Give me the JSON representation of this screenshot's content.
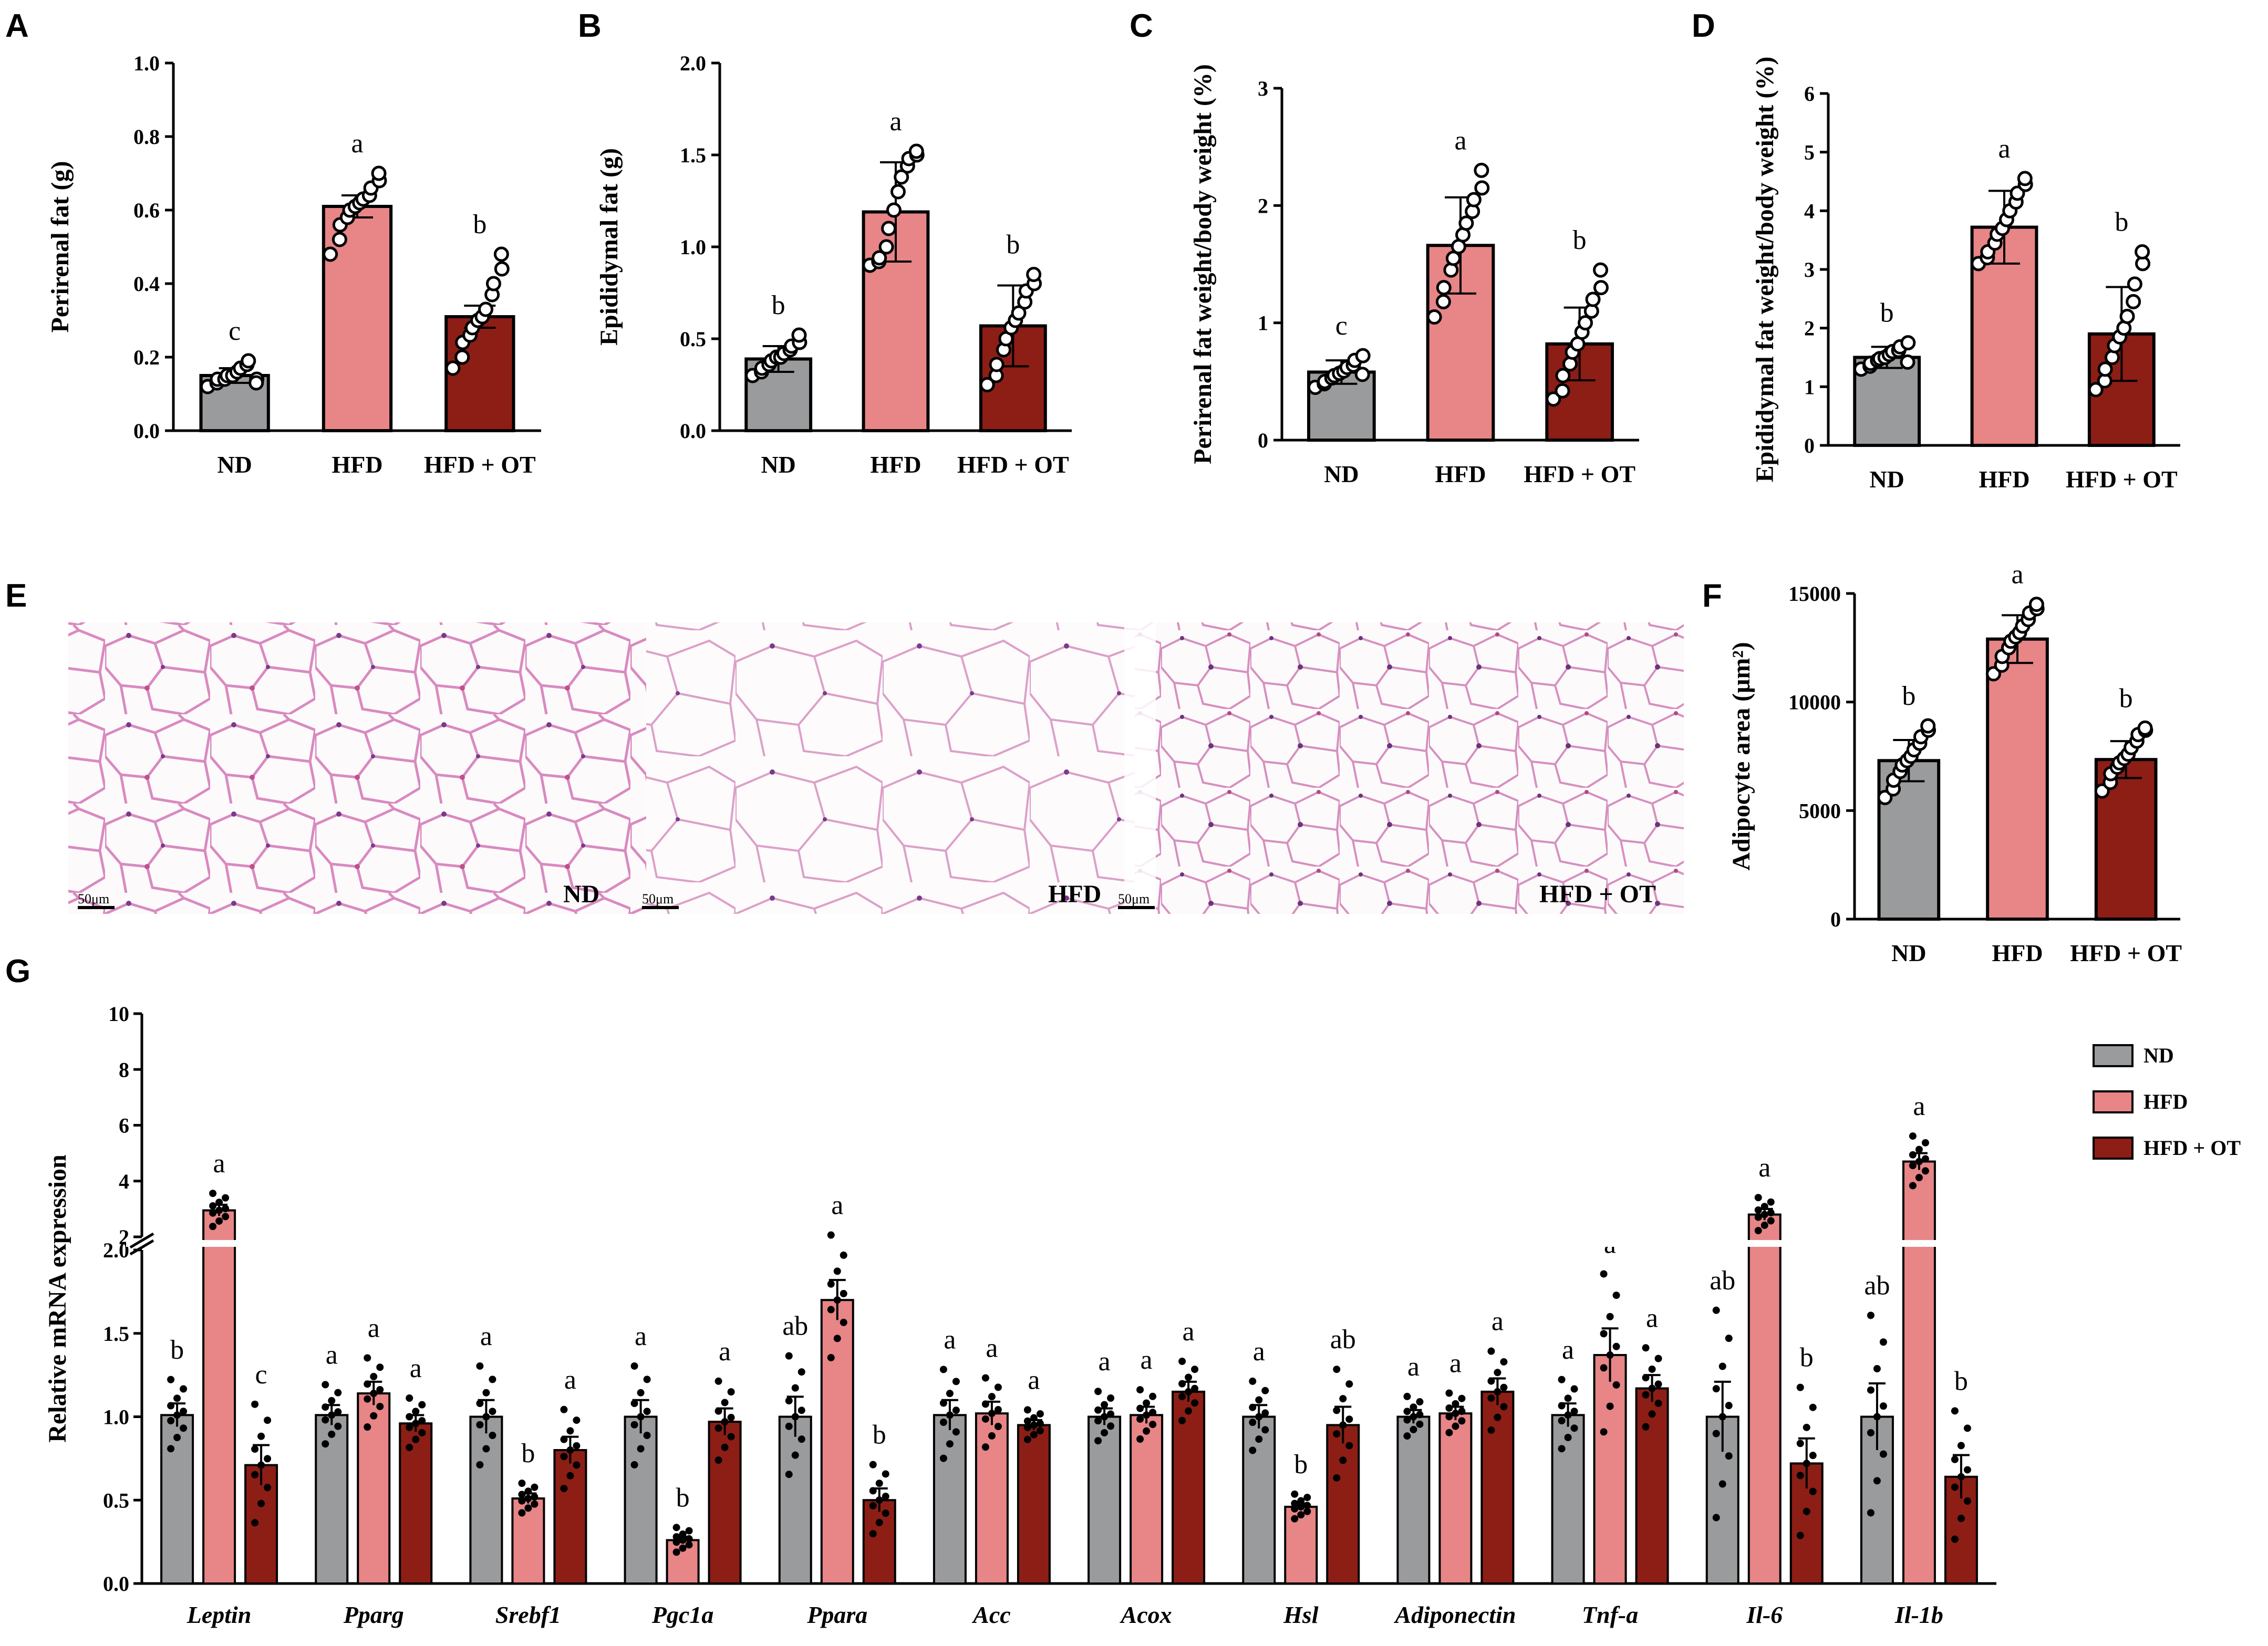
{
  "colors": {
    "ND": "#9a9b9d",
    "HFD": "#e78587",
    "HFD_OT": "#8c1e16",
    "axis": "#000000"
  },
  "panels": {
    "A": {
      "label": "A"
    },
    "B": {
      "label": "B"
    },
    "C": {
      "label": "C"
    },
    "D": {
      "label": "D"
    },
    "E": {
      "label": "E"
    },
    "F": {
      "label": "F"
    },
    "G": {
      "label": "G"
    }
  },
  "histology": {
    "groups": [
      "ND",
      "HFD",
      "HFD + OT"
    ],
    "scale_bar": "50μm"
  },
  "chart_data": [
    {
      "id": "A",
      "type": "bar",
      "ylabel": "Perirenal fat (g)",
      "categories": [
        "ND",
        "HFD",
        "HFD + OT"
      ],
      "values": [
        0.15,
        0.61,
        0.31
      ],
      "errors": [
        0.02,
        0.03,
        0.03
      ],
      "letters": [
        "c",
        "a",
        "b"
      ],
      "ylim": [
        0,
        1.0
      ],
      "yticks": [
        "0.0",
        "0.2",
        "0.4",
        "0.6",
        "0.8",
        "1.0"
      ],
      "points": [
        [
          0.12,
          0.13,
          0.14,
          0.14,
          0.15,
          0.15,
          0.16,
          0.17,
          0.18,
          0.19,
          0.14,
          0.13
        ],
        [
          0.48,
          0.52,
          0.56,
          0.58,
          0.6,
          0.61,
          0.62,
          0.63,
          0.64,
          0.66,
          0.68,
          0.7
        ],
        [
          0.17,
          0.2,
          0.24,
          0.26,
          0.28,
          0.3,
          0.31,
          0.33,
          0.37,
          0.4,
          0.44,
          0.48
        ]
      ]
    },
    {
      "id": "B",
      "type": "bar",
      "ylabel": "Epididymal fat (g)",
      "categories": [
        "ND",
        "HFD",
        "HFD + OT"
      ],
      "values": [
        0.39,
        1.19,
        0.57
      ],
      "errors": [
        0.07,
        0.27,
        0.22
      ],
      "letters": [
        "b",
        "a",
        "b"
      ],
      "ylim": [
        0,
        2.0
      ],
      "yticks": [
        "0.0",
        "0.5",
        "1.0",
        "1.5",
        "2.0"
      ],
      "points": [
        [
          0.3,
          0.32,
          0.34,
          0.36,
          0.38,
          0.4,
          0.4,
          0.42,
          0.44,
          0.46,
          0.48,
          0.52
        ],
        [
          0.9,
          0.92,
          0.94,
          1.0,
          1.1,
          1.2,
          1.3,
          1.38,
          1.44,
          1.48,
          1.5,
          1.52
        ],
        [
          0.25,
          0.3,
          0.36,
          0.44,
          0.5,
          0.56,
          0.6,
          0.64,
          0.7,
          0.76,
          0.8,
          0.85
        ]
      ]
    },
    {
      "id": "C",
      "type": "bar",
      "ylabel": "Perirenal fat weight/body weight (%)",
      "categories": [
        "ND",
        "HFD",
        "HFD + OT"
      ],
      "values": [
        0.58,
        1.66,
        0.82
      ],
      "errors": [
        0.1,
        0.41,
        0.31
      ],
      "letters": [
        "c",
        "a",
        "b"
      ],
      "ylim": [
        0,
        3
      ],
      "yticks": [
        "0",
        "1",
        "2",
        "3"
      ],
      "points": [
        [
          0.45,
          0.48,
          0.5,
          0.53,
          0.55,
          0.57,
          0.59,
          0.62,
          0.64,
          0.68,
          0.72,
          0.56
        ],
        [
          1.05,
          1.18,
          1.3,
          1.45,
          1.55,
          1.65,
          1.75,
          1.85,
          1.95,
          2.05,
          2.15,
          2.3
        ],
        [
          0.35,
          0.42,
          0.55,
          0.65,
          0.75,
          0.82,
          0.92,
          1.0,
          1.1,
          1.2,
          1.3,
          1.45
        ]
      ]
    },
    {
      "id": "D",
      "type": "bar",
      "ylabel": "Epididymal fat weight/body weight (%)",
      "categories": [
        "ND",
        "HFD",
        "HFD + OT"
      ],
      "values": [
        1.5,
        3.72,
        1.9
      ],
      "errors": [
        0.18,
        0.62,
        0.8
      ],
      "letters": [
        "b",
        "a",
        "b"
      ],
      "ylim": [
        0,
        6
      ],
      "yticks": [
        "0",
        "1",
        "2",
        "3",
        "4",
        "5",
        "6"
      ],
      "points": [
        [
          1.3,
          1.35,
          1.4,
          1.45,
          1.48,
          1.5,
          1.55,
          1.6,
          1.62,
          1.68,
          1.75,
          1.42
        ],
        [
          3.1,
          3.2,
          3.3,
          3.45,
          3.6,
          3.7,
          3.85,
          4.0,
          4.15,
          4.3,
          4.45,
          4.55
        ],
        [
          0.95,
          1.1,
          1.3,
          1.5,
          1.7,
          1.85,
          2.0,
          2.2,
          2.45,
          2.75,
          3.1,
          3.3
        ]
      ]
    },
    {
      "id": "F",
      "type": "bar",
      "ylabel": "Adipocyte area (μm²)",
      "categories": [
        "ND",
        "HFD",
        "HFD + OT"
      ],
      "values": [
        7300,
        12900,
        7350
      ],
      "errors": [
        950,
        1100,
        850
      ],
      "letters": [
        "b",
        "a",
        "b"
      ],
      "ylim": [
        0,
        15000
      ],
      "yticks": [
        "0",
        "5000",
        "10000",
        "15000"
      ],
      "points": [
        [
          5600,
          6000,
          6400,
          6800,
          7100,
          7300,
          7500,
          7800,
          8100,
          8400,
          8700,
          8900
        ],
        [
          11300,
          11700,
          12100,
          12500,
          12800,
          13000,
          13200,
          13500,
          13800,
          14100,
          14300,
          14500
        ],
        [
          5900,
          6300,
          6700,
          7000,
          7200,
          7400,
          7600,
          7900,
          8200,
          8500,
          8700,
          8800
        ]
      ]
    },
    {
      "id": "G",
      "type": "bar",
      "ylabel": "Relative mRNA expression",
      "axis_break": {
        "lower": [
          0.0,
          2.0
        ],
        "upper": [
          2,
          10
        ]
      },
      "yticks_lower": [
        "0.0",
        "0.5",
        "1.0",
        "1.5",
        "2.0"
      ],
      "yticks_upper": [
        "2",
        "4",
        "6",
        "8",
        "10"
      ],
      "legend": [
        "ND",
        "HFD",
        "HFD + OT"
      ],
      "genes": [
        {
          "name": "Leptin",
          "values": [
            1.01,
            2.95,
            0.71
          ],
          "errors": [
            0.07,
            0.2,
            0.12
          ],
          "letters": [
            "b",
            "a",
            "c"
          ]
        },
        {
          "name": "Pparg",
          "values": [
            1.01,
            1.14,
            0.96
          ],
          "errors": [
            0.06,
            0.07,
            0.05
          ],
          "letters": [
            "a",
            "a",
            "a"
          ]
        },
        {
          "name": "Srebf1",
          "values": [
            1.0,
            0.51,
            0.8
          ],
          "errors": [
            0.1,
            0.03,
            0.08
          ],
          "letters": [
            "a",
            "b",
            "a"
          ]
        },
        {
          "name": "Pgc1a",
          "values": [
            1.0,
            0.26,
            0.97
          ],
          "errors": [
            0.1,
            0.02,
            0.08
          ],
          "letters": [
            "a",
            "b",
            "a"
          ]
        },
        {
          "name": "Ppara",
          "values": [
            1.0,
            1.7,
            0.5
          ],
          "errors": [
            0.12,
            0.12,
            0.07
          ],
          "letters": [
            "ab",
            "a",
            "b"
          ]
        },
        {
          "name": "Acc",
          "values": [
            1.01,
            1.02,
            0.95
          ],
          "errors": [
            0.09,
            0.07,
            0.03
          ],
          "letters": [
            "a",
            "a",
            "a"
          ]
        },
        {
          "name": "Acox",
          "values": [
            1.0,
            1.01,
            1.15
          ],
          "errors": [
            0.05,
            0.05,
            0.06
          ],
          "letters": [
            "a",
            "a",
            "a"
          ]
        },
        {
          "name": "Hsl",
          "values": [
            1.0,
            0.46,
            0.95
          ],
          "errors": [
            0.07,
            0.02,
            0.11
          ],
          "letters": [
            "a",
            "b",
            "ab"
          ]
        },
        {
          "name": "Adiponectin",
          "values": [
            1.0,
            1.02,
            1.15
          ],
          "errors": [
            0.04,
            0.04,
            0.08
          ],
          "letters": [
            "a",
            "a",
            "a"
          ]
        },
        {
          "name": "Tnf-a",
          "values": [
            1.01,
            1.37,
            1.17
          ],
          "errors": [
            0.07,
            0.16,
            0.08
          ],
          "letters": [
            "a",
            "a",
            "a"
          ]
        },
        {
          "name": "Il-6",
          "values": [
            1.0,
            2.8,
            0.72
          ],
          "errors": [
            0.21,
            0.2,
            0.15
          ],
          "letters": [
            "ab",
            "a",
            "b"
          ]
        },
        {
          "name": "Il-1b",
          "values": [
            1.0,
            4.7,
            0.64
          ],
          "errors": [
            0.2,
            0.3,
            0.13
          ],
          "letters": [
            "ab",
            "a",
            "b"
          ]
        }
      ]
    }
  ]
}
